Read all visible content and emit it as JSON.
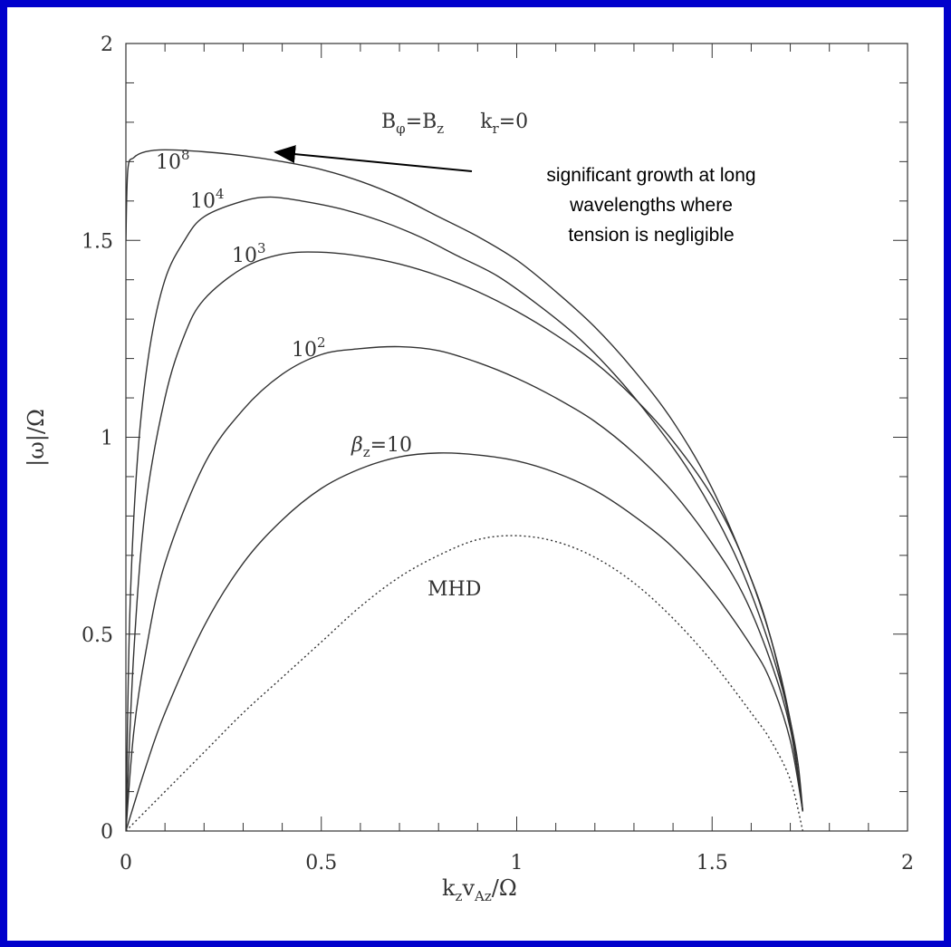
{
  "chart_data": {
    "type": "line",
    "xlabel": "k_z v_Az / Ω",
    "ylabel": "|ω| / Ω",
    "xlim": [
      0,
      2
    ],
    "ylim": [
      0,
      2
    ],
    "x_ticks": [
      "0",
      "0.5",
      "1",
      "1.5",
      "2"
    ],
    "y_ticks": [
      "0",
      "0.5",
      "1",
      "1.5",
      "2"
    ],
    "parameter_label": "B_φ = B_z     k_r = 0",
    "annotation": [
      "significant growth at long",
      "wavelengths where",
      "tension is negligible"
    ],
    "series": [
      {
        "name": "10^8",
        "style": "solid",
        "points": [
          [
            0,
            1.5
          ],
          [
            0.005,
            1.68
          ],
          [
            0.02,
            1.71
          ],
          [
            0.05,
            1.725
          ],
          [
            0.1,
            1.73
          ],
          [
            0.2,
            1.725
          ],
          [
            0.3,
            1.715
          ],
          [
            0.4,
            1.7
          ],
          [
            0.5,
            1.68
          ],
          [
            0.6,
            1.65
          ],
          [
            0.7,
            1.61
          ],
          [
            0.8,
            1.56
          ],
          [
            0.9,
            1.51
          ],
          [
            1.0,
            1.45
          ],
          [
            1.1,
            1.37
          ],
          [
            1.2,
            1.28
          ],
          [
            1.3,
            1.17
          ],
          [
            1.4,
            1.04
          ],
          [
            1.5,
            0.87
          ],
          [
            1.6,
            0.64
          ],
          [
            1.65,
            0.49
          ],
          [
            1.7,
            0.28
          ],
          [
            1.72,
            0.17
          ],
          [
            1.732,
            0.05
          ]
        ]
      },
      {
        "name": "10^4",
        "style": "solid",
        "points": [
          [
            0,
            0
          ],
          [
            0.01,
            0.55
          ],
          [
            0.03,
            0.95
          ],
          [
            0.06,
            1.22
          ],
          [
            0.1,
            1.4
          ],
          [
            0.15,
            1.5
          ],
          [
            0.2,
            1.56
          ],
          [
            0.3,
            1.6
          ],
          [
            0.37,
            1.61
          ],
          [
            0.45,
            1.6
          ],
          [
            0.55,
            1.58
          ],
          [
            0.65,
            1.55
          ],
          [
            0.75,
            1.51
          ],
          [
            0.85,
            1.46
          ],
          [
            0.95,
            1.41
          ],
          [
            1.05,
            1.34
          ],
          [
            1.15,
            1.26
          ],
          [
            1.25,
            1.16
          ],
          [
            1.35,
            1.04
          ],
          [
            1.45,
            0.9
          ],
          [
            1.55,
            0.72
          ],
          [
            1.62,
            0.55
          ],
          [
            1.68,
            0.36
          ],
          [
            1.71,
            0.21
          ],
          [
            1.732,
            0.05
          ]
        ]
      },
      {
        "name": "10^3",
        "style": "solid",
        "points": [
          [
            0,
            0
          ],
          [
            0.02,
            0.45
          ],
          [
            0.05,
            0.82
          ],
          [
            0.1,
            1.1
          ],
          [
            0.15,
            1.26
          ],
          [
            0.2,
            1.35
          ],
          [
            0.3,
            1.43
          ],
          [
            0.4,
            1.465
          ],
          [
            0.5,
            1.47
          ],
          [
            0.6,
            1.46
          ],
          [
            0.7,
            1.44
          ],
          [
            0.8,
            1.41
          ],
          [
            0.9,
            1.37
          ],
          [
            1.0,
            1.32
          ],
          [
            1.1,
            1.26
          ],
          [
            1.2,
            1.19
          ],
          [
            1.3,
            1.1
          ],
          [
            1.4,
            0.99
          ],
          [
            1.5,
            0.85
          ],
          [
            1.58,
            0.69
          ],
          [
            1.65,
            0.49
          ],
          [
            1.7,
            0.28
          ],
          [
            1.732,
            0.05
          ]
        ]
      },
      {
        "name": "10^2",
        "style": "solid",
        "points": [
          [
            0,
            0
          ],
          [
            0.02,
            0.25
          ],
          [
            0.05,
            0.45
          ],
          [
            0.1,
            0.68
          ],
          [
            0.2,
            0.93
          ],
          [
            0.3,
            1.07
          ],
          [
            0.4,
            1.16
          ],
          [
            0.5,
            1.21
          ],
          [
            0.6,
            1.225
          ],
          [
            0.7,
            1.23
          ],
          [
            0.8,
            1.22
          ],
          [
            0.9,
            1.19
          ],
          [
            1.0,
            1.15
          ],
          [
            1.1,
            1.1
          ],
          [
            1.2,
            1.04
          ],
          [
            1.3,
            0.96
          ],
          [
            1.4,
            0.86
          ],
          [
            1.5,
            0.73
          ],
          [
            1.58,
            0.6
          ],
          [
            1.65,
            0.43
          ],
          [
            1.7,
            0.26
          ],
          [
            1.732,
            0.05
          ]
        ]
      },
      {
        "name": "β_z = 10",
        "style": "solid",
        "points": [
          [
            0,
            0
          ],
          [
            0.05,
            0.16
          ],
          [
            0.1,
            0.3
          ],
          [
            0.2,
            0.52
          ],
          [
            0.3,
            0.68
          ],
          [
            0.4,
            0.79
          ],
          [
            0.5,
            0.87
          ],
          [
            0.6,
            0.92
          ],
          [
            0.7,
            0.95
          ],
          [
            0.8,
            0.96
          ],
          [
            0.9,
            0.955
          ],
          [
            1.0,
            0.94
          ],
          [
            1.1,
            0.91
          ],
          [
            1.2,
            0.865
          ],
          [
            1.3,
            0.8
          ],
          [
            1.4,
            0.72
          ],
          [
            1.5,
            0.61
          ],
          [
            1.6,
            0.47
          ],
          [
            1.65,
            0.38
          ],
          [
            1.7,
            0.23
          ],
          [
            1.732,
            0.05
          ]
        ]
      },
      {
        "name": "MHD",
        "style": "dotted",
        "points": [
          [
            0,
            0
          ],
          [
            0.05,
            0.05
          ],
          [
            0.1,
            0.1
          ],
          [
            0.2,
            0.2
          ],
          [
            0.3,
            0.3
          ],
          [
            0.4,
            0.39
          ],
          [
            0.5,
            0.48
          ],
          [
            0.6,
            0.57
          ],
          [
            0.7,
            0.645
          ],
          [
            0.8,
            0.7
          ],
          [
            0.9,
            0.74
          ],
          [
            1.0,
            0.75
          ],
          [
            1.1,
            0.735
          ],
          [
            1.2,
            0.695
          ],
          [
            1.3,
            0.63
          ],
          [
            1.4,
            0.54
          ],
          [
            1.5,
            0.43
          ],
          [
            1.6,
            0.3
          ],
          [
            1.65,
            0.23
          ],
          [
            1.7,
            0.13
          ],
          [
            1.732,
            0
          ]
        ]
      }
    ]
  }
}
